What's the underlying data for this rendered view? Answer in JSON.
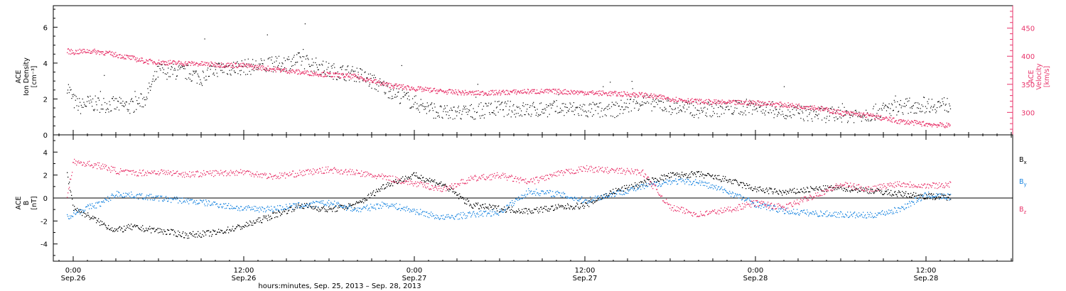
{
  "chart_data": [
    {
      "type": "scatter",
      "panel": "top",
      "left_axis_label": [
        "ACE",
        "Ion Density",
        "[cm⁻³]"
      ],
      "right_axis_label": [
        "ACE",
        "Velocity",
        "[km/s]"
      ],
      "left_ylim": [
        0,
        7.2
      ],
      "left_ticks": [
        "0",
        "2",
        "4",
        "6"
      ],
      "right_ylim": [
        260,
        490
      ],
      "right_ticks": [
        "300",
        "350",
        "400",
        "450"
      ],
      "series": [
        {
          "role": "ion-density",
          "axis": "left",
          "color": "#000000",
          "x": [
            -0.45,
            -0.25,
            0,
            0.5,
            1,
            2,
            3,
            4,
            5,
            6,
            8,
            9,
            10,
            12,
            14,
            16,
            18,
            20,
            22,
            24,
            26,
            28,
            30,
            32,
            34,
            36,
            38,
            40,
            42,
            44,
            46,
            48,
            50,
            52,
            54,
            56,
            58,
            60,
            61.7
          ],
          "y": [
            2.8,
            2.4,
            1.9,
            1.6,
            1.8,
            1.7,
            1.7,
            1.6,
            2.0,
            3.6,
            3.5,
            3.2,
            3.7,
            3.8,
            3.9,
            4.2,
            3.6,
            3.4,
            2.6,
            1.8,
            1.2,
            1.3,
            1.5,
            1.4,
            1.5,
            1.4,
            1.4,
            1.9,
            1.6,
            1.4,
            1.5,
            1.6,
            1.3,
            1.2,
            1.1,
            1.2,
            1.6,
            1.7,
            1.7
          ]
        },
        {
          "role": "velocity",
          "axis": "right",
          "color": "#e8336a",
          "x": [
            -0.45,
            0,
            1,
            2,
            3,
            4,
            5,
            6,
            8,
            10,
            12,
            14,
            16,
            18,
            20,
            22,
            24,
            26,
            28,
            30,
            32,
            34,
            36,
            38,
            40,
            42,
            44,
            46,
            48,
            50,
            52,
            54,
            56,
            58,
            60,
            61.7
          ],
          "y": [
            410,
            408,
            410,
            408,
            403,
            398,
            392,
            390,
            388,
            386,
            384,
            378,
            372,
            368,
            364,
            350,
            343,
            338,
            335,
            336,
            338,
            338,
            336,
            334,
            332,
            325,
            320,
            318,
            318,
            314,
            310,
            300,
            295,
            285,
            280,
            277
          ]
        }
      ]
    },
    {
      "type": "scatter",
      "panel": "bottom",
      "left_axis_label": [
        "ACE",
        "B",
        "[nT]"
      ],
      "ylim": [
        -5.5,
        5.5
      ],
      "yticks": [
        "-4",
        "-2",
        "0",
        "2",
        "4"
      ],
      "legend": [
        {
          "label": "Bx",
          "base": "B",
          "sub": "x",
          "color": "#000000"
        },
        {
          "label": "By",
          "base": "B",
          "sub": "y",
          "color": "#1a85e0"
        },
        {
          "label": "Bz",
          "base": "B",
          "sub": "z",
          "color": "#e8336a"
        }
      ],
      "series": [
        {
          "name": "Bx",
          "color": "#000000",
          "x": [
            -0.45,
            0,
            1,
            2,
            3,
            4,
            6,
            8,
            10,
            12,
            14,
            16,
            18,
            20,
            22,
            24,
            26,
            28,
            30,
            32,
            34,
            36,
            38,
            40,
            42,
            44,
            46,
            48,
            50,
            52,
            54,
            56,
            58,
            60,
            61.7
          ],
          "y": [
            2.2,
            -0.8,
            -1.5,
            -2.2,
            -2.8,
            -2.5,
            -2.8,
            -3.2,
            -3.0,
            -2.4,
            -1.5,
            -0.6,
            -1.0,
            -0.5,
            1.2,
            2.0,
            1.2,
            -0.6,
            -0.9,
            -1.1,
            -0.8,
            -0.6,
            0.6,
            1.3,
            2.0,
            2.1,
            1.6,
            0.8,
            0.5,
            0.8,
            0.9,
            0.7,
            0.4,
            0.2,
            0.1
          ]
        },
        {
          "name": "By",
          "color": "#1a85e0",
          "x": [
            -0.45,
            0,
            1,
            2,
            3,
            4,
            6,
            8,
            10,
            12,
            14,
            16,
            18,
            20,
            22,
            24,
            26,
            28,
            30,
            32,
            34,
            36,
            38,
            40,
            42,
            44,
            46,
            48,
            50,
            52,
            54,
            56,
            58,
            60,
            61.7
          ],
          "y": [
            -1.6,
            -1.3,
            -0.8,
            -0.4,
            0.4,
            0.3,
            0.0,
            -0.2,
            -0.5,
            -0.9,
            -0.9,
            -0.6,
            -0.4,
            -1.0,
            -0.5,
            -1.1,
            -1.7,
            -1.4,
            -1.2,
            0.6,
            0.4,
            -0.2,
            0.4,
            1.0,
            1.5,
            1.4,
            0.6,
            -0.5,
            -1.1,
            -1.3,
            -1.4,
            -1.5,
            -1.0,
            0.3,
            0.1
          ]
        },
        {
          "name": "Bz",
          "color": "#e8336a",
          "x": [
            -0.45,
            0,
            1,
            2,
            3,
            4,
            6,
            8,
            10,
            12,
            14,
            16,
            18,
            20,
            22,
            24,
            26,
            28,
            30,
            32,
            34,
            36,
            38,
            40,
            42,
            44,
            46,
            48,
            50,
            52,
            54,
            56,
            58,
            60,
            61.7
          ],
          "y": [
            0.2,
            3.2,
            3.0,
            2.8,
            2.4,
            2.2,
            2.3,
            2.1,
            2.2,
            2.3,
            1.9,
            2.2,
            2.5,
            2.2,
            1.8,
            1.3,
            0.8,
            1.7,
            2.0,
            1.4,
            2.1,
            2.6,
            2.4,
            2.3,
            -0.8,
            -1.4,
            -1.0,
            -0.4,
            -0.8,
            0.2,
            1.2,
            0.8,
            1.3,
            1.1,
            1.2
          ]
        }
      ]
    }
  ],
  "time_axis": {
    "x_range_hours": [
      -1.4,
      66.1
    ],
    "tick_labels": [
      {
        "hour": 0,
        "time": "0:00",
        "date": "Sep.26"
      },
      {
        "hour": 12,
        "time": "12:00",
        "date": "Sep.26"
      },
      {
        "hour": 24,
        "time": "0:00",
        "date": "Sep.27"
      },
      {
        "hour": 36,
        "time": "12:00",
        "date": "Sep.27"
      },
      {
        "hour": 48,
        "time": "0:00",
        "date": "Sep.28"
      },
      {
        "hour": 60,
        "time": "12:00",
        "date": "Sep.28"
      }
    ],
    "xlabel": "hours:minutes, Sep. 25, 2013 – Sep. 28, 2013"
  }
}
